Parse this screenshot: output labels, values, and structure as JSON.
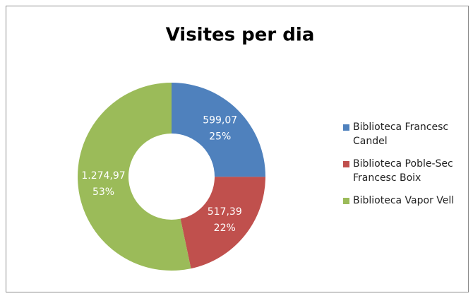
{
  "chart_data": {
    "type": "donut",
    "title": "Visites per dia",
    "categories": [
      "Biblioteca Francesc Candel",
      "Biblioteca Poble-Sec Francesc Boix",
      "Biblioteca Vapor Vell"
    ],
    "values": [
      599.07,
      517.39,
      1274.97
    ],
    "value_labels": [
      "599,07",
      "517,39",
      "1.274,97"
    ],
    "percent_labels": [
      "25%",
      "22%",
      "53%"
    ],
    "colors": [
      "#4f81bd",
      "#c0504d",
      "#9bbb59"
    ],
    "legend": "right"
  }
}
